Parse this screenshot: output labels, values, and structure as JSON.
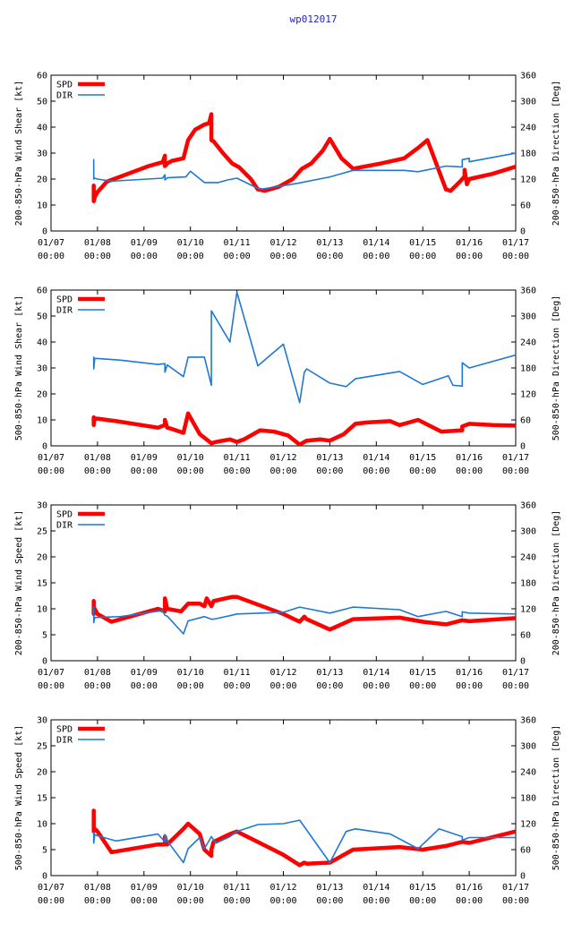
{
  "page_title": "wp012017",
  "colors": {
    "spd": "#ff0000",
    "dir": "#1f78d4",
    "title": "#2222cc",
    "axis": "#000000"
  },
  "x_tick_labels": [
    [
      "01/07",
      "00:00"
    ],
    [
      "01/08",
      "00:00"
    ],
    [
      "01/09",
      "00:00"
    ],
    [
      "01/10",
      "00:00"
    ],
    [
      "01/11",
      "00:00"
    ],
    [
      "01/12",
      "00:00"
    ],
    [
      "01/13",
      "00:00"
    ],
    [
      "01/14",
      "00:00"
    ],
    [
      "01/15",
      "00:00"
    ],
    [
      "01/16",
      "00:00"
    ],
    [
      "01/17",
      "00:00"
    ]
  ],
  "chart_data": [
    {
      "type": "line",
      "title": "",
      "ylabel": "200-850-hPa Wind Shear [kt]",
      "y2label": "200-850-hPa Direction [Deg]",
      "xlim": [
        0,
        10
      ],
      "ylim": [
        0,
        60
      ],
      "y2lim": [
        0,
        360
      ],
      "yticks": [
        0,
        10,
        20,
        30,
        40,
        50,
        60
      ],
      "y2ticks": [
        0,
        60,
        120,
        180,
        240,
        300,
        360
      ],
      "legend": "top-left",
      "series": [
        {
          "name": "SPD",
          "axis": "left",
          "x": [
            0.92,
            0.92,
            0.92,
            0.94,
            1.0,
            1.1,
            1.2,
            1.5,
            1.8,
            2.1,
            2.3,
            2.4,
            2.45,
            2.45,
            2.48,
            2.5,
            2.6,
            2.85,
            2.95,
            3.1,
            3.3,
            3.4,
            3.45,
            3.45,
            3.5,
            3.7,
            3.9,
            4.05,
            4.3,
            4.45,
            4.6,
            4.9,
            5.2,
            5.4,
            5.6,
            5.85,
            6.0,
            6.25,
            6.5,
            7.1,
            7.6,
            7.9,
            8.1,
            8.5,
            8.6,
            8.8,
            8.9,
            8.9,
            8.95,
            9.0,
            9.5,
            10.0
          ],
          "y": [
            11.5,
            17.5,
            11.5,
            13,
            15,
            17,
            19,
            21,
            23,
            25,
            26,
            26.5,
            29,
            25,
            25.5,
            26,
            27,
            28,
            35,
            39,
            41,
            41.5,
            45,
            35,
            34.5,
            30,
            26,
            24.5,
            20,
            16,
            15.5,
            17,
            20,
            24,
            26,
            31,
            35.5,
            28,
            24,
            26,
            28,
            32,
            35,
            16,
            15.5,
            19,
            21,
            23.5,
            18,
            20,
            22,
            24.8
          ]
        },
        {
          "name": "DIR",
          "axis": "right",
          "x": [
            0.92,
            0.92,
            0.92,
            0.94,
            1.0,
            1.3,
            2.4,
            2.45,
            2.45,
            2.5,
            2.9,
            3.0,
            3.3,
            3.6,
            3.8,
            4.0,
            4.5,
            5.3,
            6.0,
            6.5,
            7.6,
            7.9,
            8.5,
            8.85,
            8.85,
            9.0,
            9.0,
            10.0
          ],
          "y": [
            123,
            165,
            120,
            122,
            120,
            115,
            122,
            130,
            118,
            123,
            125,
            138,
            112,
            112,
            118,
            122,
            96,
            110,
            125,
            140,
            140,
            137,
            150,
            148,
            165,
            168,
            160,
            180
          ]
        }
      ]
    },
    {
      "type": "line",
      "title": "",
      "ylabel": "500-850-hPa Wind Shear [kt]",
      "y2label": "500-850-hPa Direction [Deg]",
      "xlim": [
        0,
        10
      ],
      "ylim": [
        0,
        60
      ],
      "y2lim": [
        0,
        360
      ],
      "yticks": [
        0,
        10,
        20,
        30,
        40,
        50,
        60
      ],
      "y2ticks": [
        0,
        60,
        120,
        180,
        240,
        300,
        360
      ],
      "legend": "top-left",
      "series": [
        {
          "name": "SPD",
          "axis": "left",
          "x": [
            0.92,
            0.92,
            0.92,
            0.94,
            1.0,
            1.4,
            2.3,
            2.45,
            2.45,
            2.5,
            2.6,
            2.85,
            2.95,
            3.2,
            3.45,
            3.55,
            3.85,
            4.0,
            4.15,
            4.5,
            4.8,
            5.1,
            5.35,
            5.5,
            5.8,
            6.0,
            6.3,
            6.55,
            6.8,
            7.3,
            7.5,
            7.9,
            8.4,
            8.85,
            8.85,
            9.0,
            9.5,
            10.0
          ],
          "y": [
            8,
            11,
            8.5,
            10.5,
            10.5,
            9.5,
            7,
            8,
            10,
            7,
            6.5,
            5,
            12.5,
            4.5,
            1,
            1.5,
            2.5,
            1.5,
            2.5,
            6,
            5.5,
            4,
            0.5,
            2,
            2.5,
            2,
            4.5,
            8.5,
            9,
            9.5,
            8,
            10,
            5.5,
            6,
            7.5,
            8.5,
            8,
            7.8
          ]
        },
        {
          "name": "DIR",
          "axis": "right",
          "x": [
            0.92,
            0.92,
            0.92,
            0.94,
            1.0,
            1.5,
            2.3,
            2.45,
            2.45,
            2.5,
            2.85,
            2.95,
            3.3,
            3.45,
            3.45,
            3.85,
            4.0,
            4.45,
            5.0,
            5.35,
            5.45,
            5.5,
            6.0,
            6.35,
            6.55,
            7.5,
            8.0,
            8.55,
            8.65,
            8.85,
            8.85,
            9.0,
            10.0
          ],
          "y": [
            200,
            205,
            178,
            202,
            202,
            198,
            188,
            190,
            170,
            187,
            160,
            205,
            205,
            140,
            312,
            240,
            355,
            185,
            235,
            100,
            170,
            178,
            145,
            137,
            155,
            172,
            142,
            162,
            140,
            138,
            192,
            180,
            210
          ]
        }
      ]
    },
    {
      "type": "line",
      "title": "",
      "ylabel": "200-850-hPa Wind Speed [kt]",
      "y2label": "200-850-hPa Direction [Deg]",
      "xlim": [
        0,
        10
      ],
      "ylim": [
        0,
        30
      ],
      "y2lim": [
        0,
        360
      ],
      "yticks": [
        0,
        5,
        10,
        15,
        20,
        25,
        30
      ],
      "y2ticks": [
        0,
        60,
        120,
        180,
        240,
        300,
        360
      ],
      "legend": "top-left",
      "series": [
        {
          "name": "SPD",
          "axis": "left",
          "x": [
            0.92,
            0.92,
            0.92,
            0.94,
            1.0,
            1.3,
            1.7,
            2.3,
            2.45,
            2.45,
            2.5,
            2.8,
            2.95,
            3.2,
            3.3,
            3.35,
            3.45,
            3.5,
            3.9,
            4.0,
            5.0,
            5.35,
            5.45,
            5.5,
            6.0,
            6.5,
            7.5,
            8.0,
            8.5,
            8.85,
            9.0,
            10.0
          ],
          "y": [
            9.5,
            11.5,
            9,
            10,
            9,
            7.5,
            8.5,
            10,
            9.5,
            12,
            10,
            9.5,
            11,
            11,
            10.5,
            12,
            10.5,
            11.5,
            12.3,
            12.3,
            9,
            7.5,
            8.5,
            8,
            6,
            8,
            8.3,
            7.5,
            7,
            7.8,
            7.6,
            8.2
          ]
        },
        {
          "name": "DIR",
          "axis": "right",
          "x": [
            0.92,
            0.92,
            0.92,
            0.94,
            1.0,
            1.5,
            2.4,
            2.45,
            2.5,
            2.85,
            2.95,
            3.3,
            3.45,
            3.5,
            3.85,
            4.0,
            5.0,
            5.35,
            6.0,
            6.5,
            7.5,
            7.9,
            8.5,
            8.85,
            8.85,
            9.0,
            10.0
          ],
          "y": [
            116,
            124,
            88,
            100,
            100,
            102,
            116,
            105,
            103,
            62,
            92,
            102,
            96,
            96,
            104,
            108,
            112,
            124,
            110,
            124,
            118,
            102,
            114,
            102,
            113,
            110,
            108
          ]
        }
      ]
    },
    {
      "type": "line",
      "title": "",
      "ylabel": "500-850-hPa Wind Speed [kt]",
      "y2label": "500-850-hPa Direction [Deg]",
      "xlim": [
        0,
        10
      ],
      "ylim": [
        0,
        30
      ],
      "y2lim": [
        0,
        360
      ],
      "yticks": [
        0,
        5,
        10,
        15,
        20,
        25,
        30
      ],
      "y2ticks": [
        0,
        60,
        120,
        180,
        240,
        300,
        360
      ],
      "legend": "top-left",
      "series": [
        {
          "name": "SPD",
          "axis": "left",
          "x": [
            0.92,
            0.92,
            0.92,
            0.94,
            1.0,
            1.3,
            2.3,
            2.45,
            2.45,
            2.5,
            2.85,
            2.95,
            3.2,
            3.3,
            3.45,
            3.45,
            3.5,
            3.85,
            4.0,
            5.0,
            5.35,
            5.45,
            5.5,
            6.0,
            6.5,
            7.5,
            8.0,
            8.5,
            8.85,
            9.0,
            10.0
          ],
          "y": [
            9,
            12.5,
            8.5,
            9,
            8.5,
            4.5,
            6,
            6,
            7.5,
            6,
            9,
            10,
            8,
            5,
            3.8,
            5,
            6.5,
            8,
            8.5,
            4,
            2,
            2.5,
            2.3,
            2.5,
            5,
            5.5,
            5,
            5.7,
            6.5,
            6.3,
            8.5
          ]
        },
        {
          "name": "DIR",
          "axis": "right",
          "x": [
            0.92,
            0.92,
            0.92,
            0.94,
            1.0,
            1.4,
            2.3,
            2.45,
            2.45,
            2.5,
            2.85,
            2.95,
            3.2,
            3.3,
            3.45,
            3.55,
            3.85,
            4.0,
            4.45,
            5.0,
            5.35,
            6.0,
            6.35,
            6.55,
            7.3,
            7.9,
            8.35,
            8.85,
            8.85,
            9.0,
            10.0
          ],
          "y": [
            100,
            90,
            75,
            95,
            92,
            80,
            96,
            78,
            95,
            80,
            30,
            62,
            88,
            62,
            90,
            75,
            90,
            102,
            118,
            120,
            128,
            30,
            102,
            108,
            96,
            62,
            108,
            90,
            82,
            88,
            88
          ]
        }
      ]
    }
  ]
}
